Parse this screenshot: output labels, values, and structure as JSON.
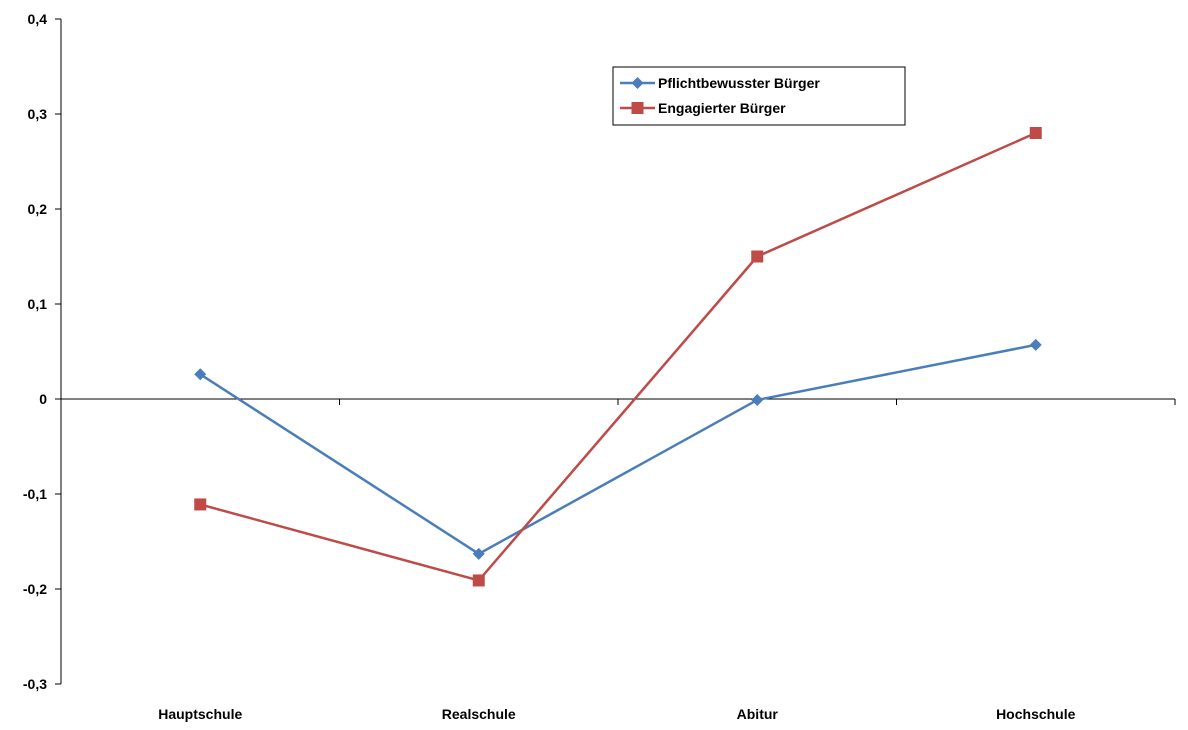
{
  "chart_data": {
    "type": "line",
    "title": "",
    "xlabel": "",
    "ylabel": "",
    "categories": [
      "Hauptschule",
      "Realschule",
      "Abitur",
      "Hochschule"
    ],
    "ylim": [
      -0.3,
      0.4
    ],
    "yticks": [
      -0.3,
      -0.2,
      -0.1,
      0,
      0.1,
      0.2,
      0.3,
      0.4
    ],
    "ytick_labels": [
      "-0,3",
      "-0,2",
      "-0,1",
      "0",
      "0,1",
      "0,2",
      "0,3",
      "0,4"
    ],
    "grid": false,
    "legend_position": "top-right",
    "series": [
      {
        "name": "Pflichtbewusster Bürger",
        "values": [
          0.026,
          -0.163,
          -0.001,
          0.057
        ],
        "color": "#4a7ebb",
        "marker": "diamond"
      },
      {
        "name": "Engagierter Bürger",
        "values": [
          -0.111,
          -0.191,
          0.15,
          0.28
        ],
        "color": "#be4b48",
        "marker": "square"
      }
    ]
  }
}
